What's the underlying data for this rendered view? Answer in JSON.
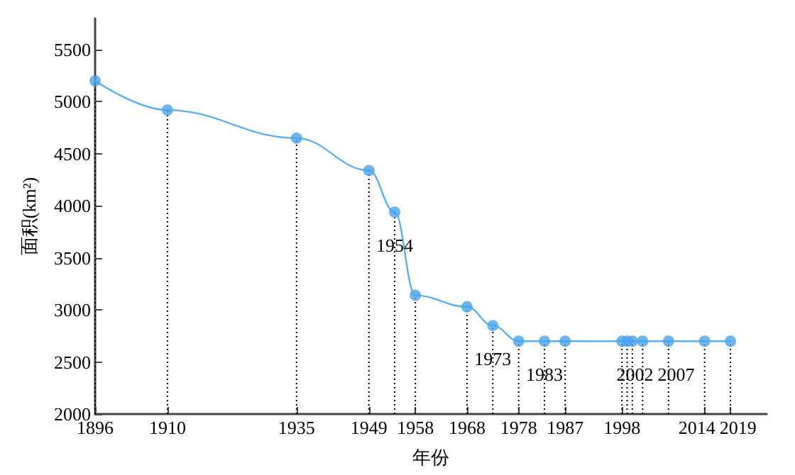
{
  "chart_data": {
    "type": "line",
    "xlabel": "年份",
    "ylabel": "面积(km²)",
    "x": [
      1896,
      1910,
      1935,
      1949,
      1954,
      1958,
      1968,
      1973,
      1978,
      1983,
      1987,
      1998,
      1999,
      2000,
      2002,
      2007,
      2014,
      2019
    ],
    "series": [
      {
        "color": "#5aaff0",
        "marker": "none",
        "line_style": "solid",
        "values": [
          5200,
          4920,
          4650,
          4340,
          3940,
          3140,
          3030,
          2850,
          2700,
          2700,
          2700,
          2700,
          2700,
          2700,
          2700,
          2700,
          2700,
          2700
        ]
      },
      {
        "type": "lollipop",
        "color": "#4aa3ea",
        "marker": "circle",
        "line_style": "dotted",
        "values": [
          5200,
          4920,
          4650,
          4340,
          3940,
          3140,
          3030,
          2850,
          2700,
          2700,
          2700,
          2700,
          2700,
          2700,
          2700,
          2700,
          2700,
          2700
        ]
      }
    ],
    "xlim": [
      1896,
      2026
    ],
    "xticks": [
      1896,
      1910,
      1935,
      1949,
      1958,
      1968,
      1978,
      1987,
      1998,
      2014,
      2019
    ],
    "ylim": [
      2000,
      5800
    ],
    "yticks": [
      2000,
      2500,
      3000,
      3500,
      4000,
      4500,
      5000,
      5500
    ],
    "annotations": [
      {
        "text": "1954",
        "x": 1954,
        "y": 3940
      },
      {
        "text": "1973",
        "x": 1973,
        "y": 2850
      },
      {
        "text": "1983",
        "x": 1983,
        "y": 2700
      },
      {
        "text": "2002",
        "x": 2002,
        "y": 2700
      },
      {
        "text": "2007",
        "x": 2007,
        "y": 2700
      }
    ]
  }
}
